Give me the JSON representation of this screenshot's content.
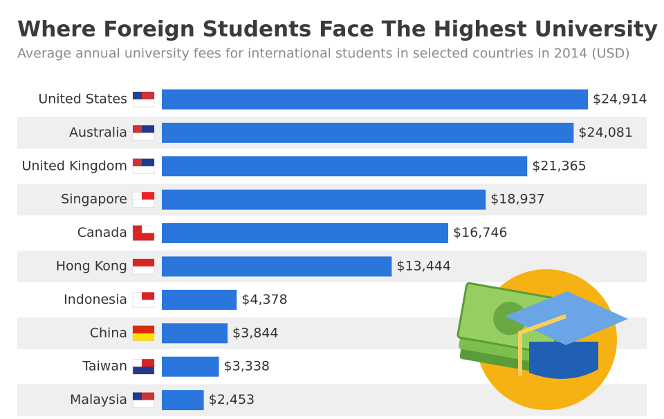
{
  "chart_data": {
    "type": "bar",
    "orientation": "horizontal",
    "title": "Where Foreign Students Face The Highest University Fees",
    "subtitle": "Average annual university fees for international students in selected countries in 2014 (USD)",
    "categories": [
      "United States",
      "Australia",
      "United Kingdom",
      "Singapore",
      "Canada",
      "Hong Kong",
      "Indonesia",
      "China",
      "Taiwan",
      "Malaysia"
    ],
    "values": [
      24914,
      24081,
      21365,
      18937,
      16746,
      13444,
      4378,
      3844,
      3338,
      2453
    ],
    "value_labels": [
      "$24,914",
      "$24,081",
      "$21,365",
      "$18,937",
      "$16,746",
      "$13,444",
      "$4,378",
      "$3,844",
      "$3,338",
      "$2,453"
    ],
    "color": "#2a76dd"
  }
}
